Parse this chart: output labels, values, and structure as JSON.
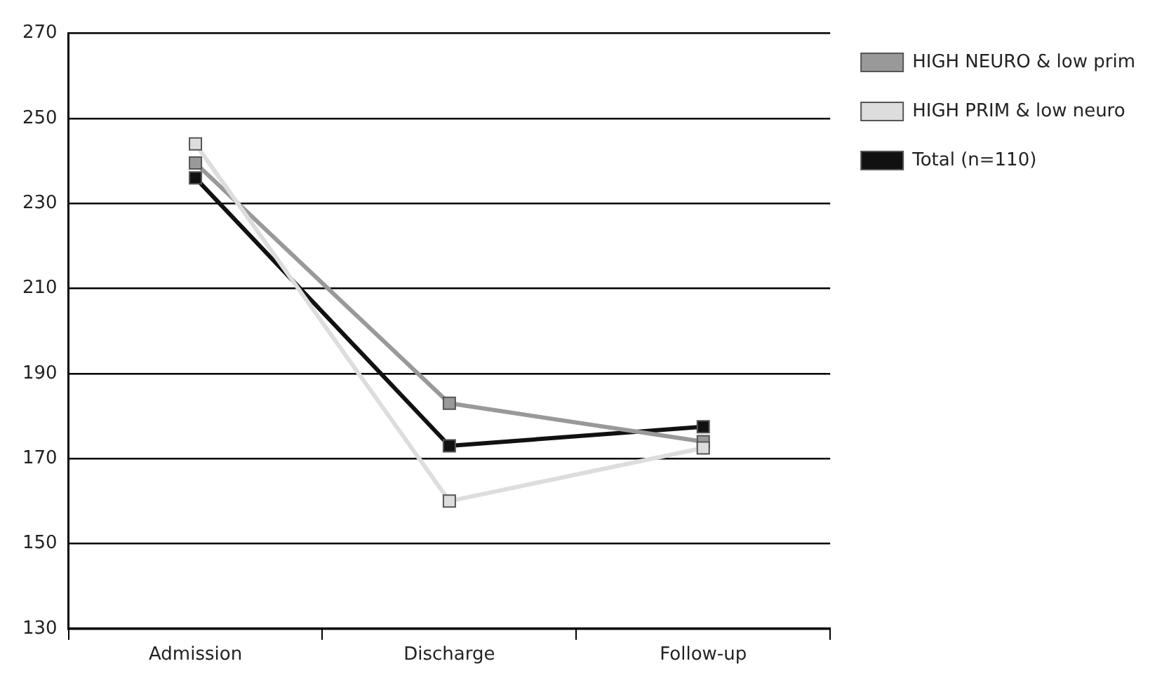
{
  "chart_data": {
    "type": "line",
    "categories": [
      "Admission",
      "Discharge",
      "Follow-up"
    ],
    "series": [
      {
        "name": "HIGH NEURO & low prim",
        "color": "#999999",
        "values": [
          239.5,
          183,
          174
        ]
      },
      {
        "name": "HIGH PRIM & low neuro",
        "color": "#dddddd",
        "values": [
          244,
          160,
          172.5
        ]
      },
      {
        "name": "Total (n=110)",
        "color": "#111111",
        "values": [
          236,
          173,
          177.5
        ]
      }
    ],
    "ylim": [
      130,
      270
    ],
    "yticks": [
      130,
      150,
      170,
      190,
      210,
      230,
      250,
      270
    ],
    "grid": "y",
    "legend": "top right",
    "marker": "square",
    "line_style": "solid"
  }
}
